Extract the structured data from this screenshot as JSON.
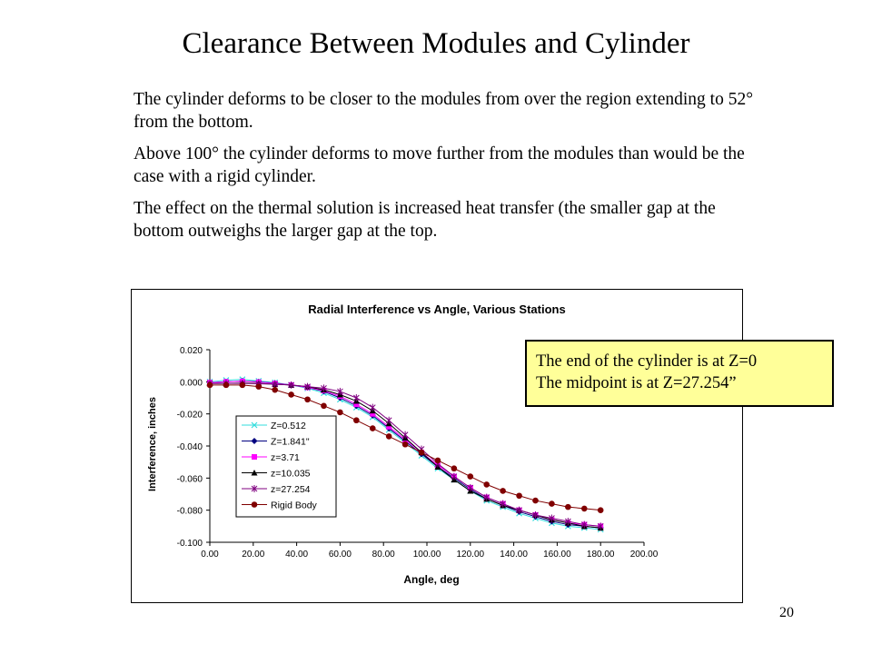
{
  "slide": {
    "title": "Clearance Between Modules and Cylinder",
    "paragraphs": [
      "The cylinder deforms to be closer to the modules from over the region extending to 52° from the bottom.",
      "Above 100° the cylinder deforms to move further from the modules than would be the case with a rigid cylinder.",
      "The effect on the thermal solution is increased heat transfer (the smaller gap at the bottom outweighs the larger gap at the top."
    ],
    "note_lines": [
      "The end of the cylinder is at Z=0",
      "The midpoint is at Z=27.254”"
    ],
    "page_number": "20"
  },
  "chart_data": {
    "type": "line",
    "title": "Radial Interference vs Angle, Various Stations",
    "xlabel": "Angle, deg",
    "ylabel": "Interference, inches",
    "xlim": [
      0,
      200
    ],
    "ylim": [
      -0.1,
      0.02
    ],
    "x_ticks": [
      "0.00",
      "20.00",
      "40.00",
      "60.00",
      "80.00",
      "100.00",
      "120.00",
      "140.00",
      "160.00",
      "180.00",
      "200.00"
    ],
    "y_ticks": [
      "0.020",
      "0.000",
      "-0.020",
      "-0.040",
      "-0.060",
      "-0.080",
      "-0.100"
    ],
    "grid": false,
    "legend_position": "left-bottom",
    "x": [
      0,
      7.5,
      15,
      22.5,
      30,
      37.5,
      45,
      52.5,
      60,
      67.5,
      75,
      82.5,
      90,
      97.5,
      105,
      112.5,
      120,
      127.5,
      135,
      142.5,
      150,
      157.5,
      165,
      172.5,
      180
    ],
    "series": [
      {
        "name": "Z=0.512",
        "color": "#33dddd",
        "marker": "x",
        "values": [
          0.0,
          0.001,
          0.0015,
          0.0005,
          -0.0005,
          -0.002,
          -0.004,
          -0.007,
          -0.011,
          -0.016,
          -0.022,
          -0.03,
          -0.038,
          -0.046,
          -0.054,
          -0.061,
          -0.068,
          -0.074,
          -0.078,
          -0.082,
          -0.085,
          -0.088,
          -0.09,
          -0.091,
          -0.092
        ]
      },
      {
        "name": "Z=1.841\"",
        "color": "#000080",
        "marker": "diamond",
        "values": [
          -0.0005,
          0.0,
          0.0005,
          0.0,
          -0.0008,
          -0.002,
          -0.0035,
          -0.006,
          -0.01,
          -0.015,
          -0.021,
          -0.029,
          -0.037,
          -0.045,
          -0.053,
          -0.06,
          -0.067,
          -0.073,
          -0.077,
          -0.081,
          -0.084,
          -0.087,
          -0.089,
          -0.09,
          -0.091
        ]
      },
      {
        "name": "z=3.71",
        "color": "#ff00ff",
        "marker": "square",
        "values": [
          -0.0005,
          0.0,
          0.0003,
          -0.0002,
          -0.001,
          -0.002,
          -0.0035,
          -0.0055,
          -0.009,
          -0.014,
          -0.02,
          -0.028,
          -0.036,
          -0.044,
          -0.052,
          -0.059,
          -0.066,
          -0.072,
          -0.076,
          -0.08,
          -0.083,
          -0.086,
          -0.088,
          -0.089,
          -0.09
        ]
      },
      {
        "name": "z=10.035",
        "color": "#000000",
        "marker": "triangle",
        "values": [
          -0.001,
          -0.001,
          -0.0008,
          -0.001,
          -0.0015,
          -0.002,
          -0.003,
          -0.005,
          -0.008,
          -0.012,
          -0.018,
          -0.026,
          -0.035,
          -0.044,
          -0.053,
          -0.061,
          -0.068,
          -0.073,
          -0.077,
          -0.08,
          -0.083,
          -0.086,
          -0.088,
          -0.09,
          -0.091
        ]
      },
      {
        "name": "z=27.254",
        "color": "#800080",
        "marker": "star",
        "values": [
          -0.001,
          -0.001,
          -0.001,
          -0.0012,
          -0.0015,
          -0.002,
          -0.003,
          -0.004,
          -0.006,
          -0.01,
          -0.016,
          -0.024,
          -0.033,
          -0.042,
          -0.051,
          -0.059,
          -0.066,
          -0.072,
          -0.076,
          -0.08,
          -0.083,
          -0.085,
          -0.087,
          -0.089,
          -0.09
        ]
      },
      {
        "name": "Rigid Body",
        "color": "#800000",
        "marker": "circle",
        "values": [
          -0.002,
          -0.002,
          -0.002,
          -0.003,
          -0.005,
          -0.008,
          -0.011,
          -0.015,
          -0.019,
          -0.024,
          -0.029,
          -0.034,
          -0.039,
          -0.044,
          -0.049,
          -0.054,
          -0.059,
          -0.064,
          -0.068,
          -0.071,
          -0.074,
          -0.076,
          -0.078,
          -0.079,
          -0.08
        ]
      }
    ]
  }
}
